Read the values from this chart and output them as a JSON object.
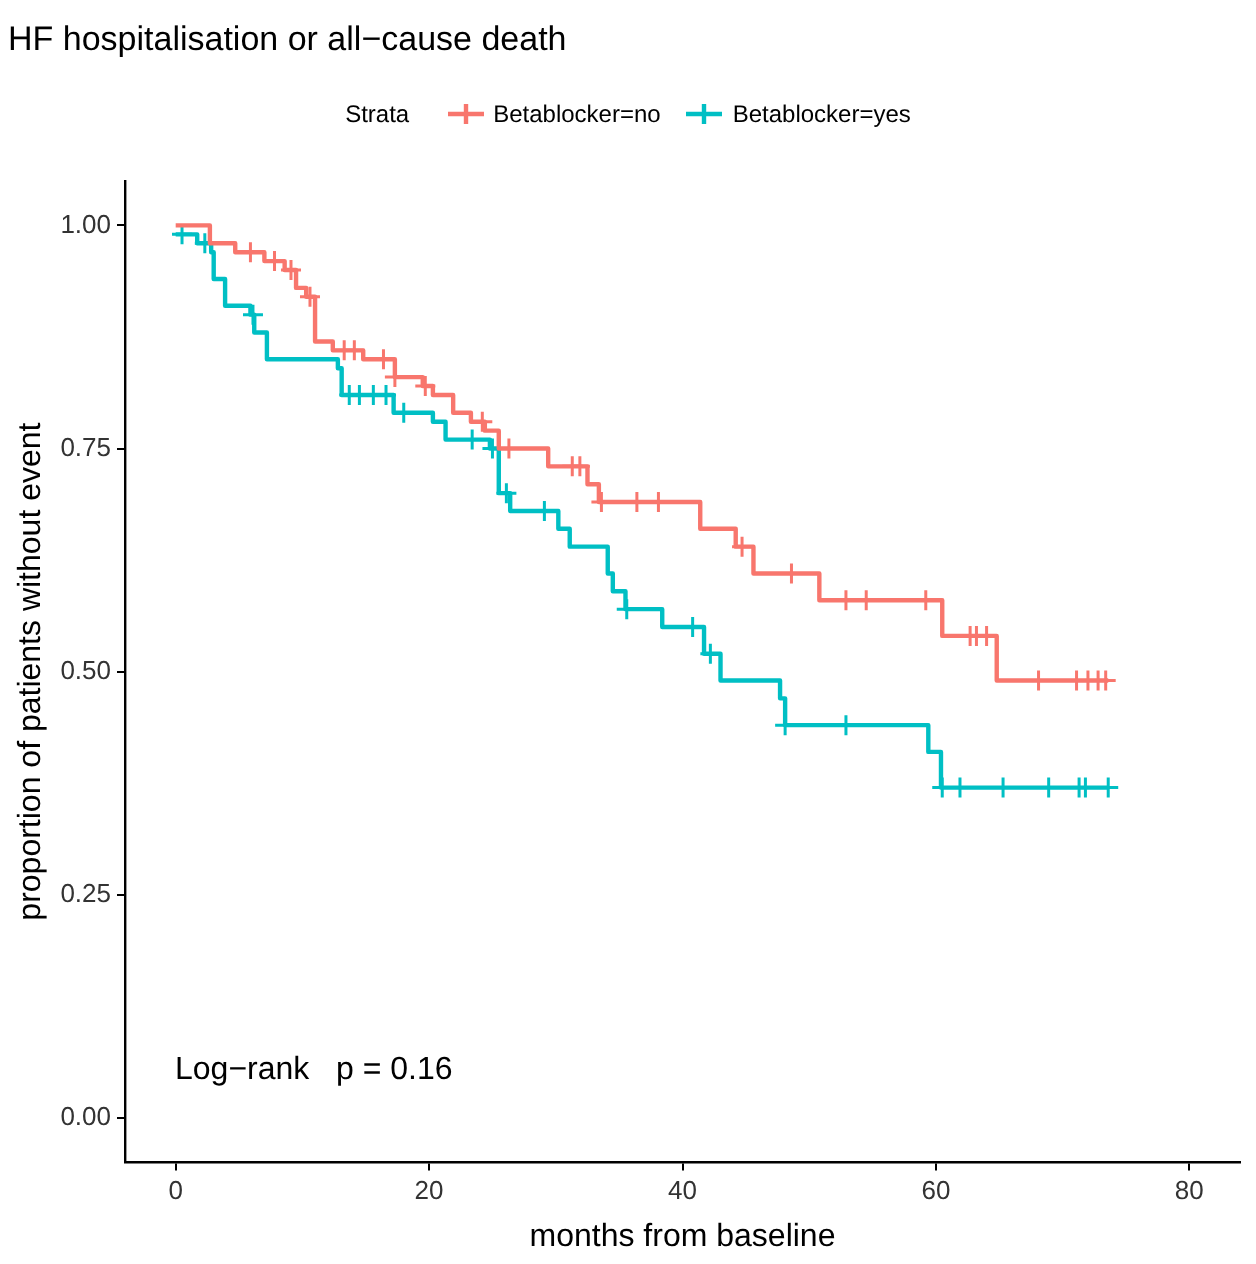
{
  "chart_data": {
    "type": "line",
    "title": "HF hospitalisation or all−cause death",
    "xlabel": "months from baseline",
    "ylabel": "proportion of patients without event",
    "legend_title": "Strata",
    "legend": "top",
    "grid": false,
    "xlim": [
      -4,
      84
    ],
    "xticks": [
      0,
      20,
      40,
      60,
      80
    ],
    "ylim": [
      -0.05,
      1.05
    ],
    "yticks": [
      {
        "value": 0,
        "label": "0.00"
      },
      {
        "value": 0.25,
        "label": "0.25"
      },
      {
        "value": 0.5,
        "label": "0.50"
      },
      {
        "value": 0.75,
        "label": "0.75"
      },
      {
        "value": 1,
        "label": "1.00"
      }
    ],
    "annotations": [
      "Log−rank   p = 0.16"
    ],
    "series": [
      {
        "type": "step",
        "name": "Betablocker=no",
        "color": "#f8766d",
        "x": [
          0,
          2.7,
          4.7,
          7.0,
          8.6,
          9.5,
          10.3,
          11,
          12.4,
          14.8,
          17.3,
          19.5,
          20.3,
          21.9,
          23.3,
          24.4,
          25.5,
          29.4,
          32.5,
          33.4,
          41.4,
          44.2,
          45.6,
          50.8,
          60.5,
          64.8,
          73.6
        ],
        "values": [
          1,
          0.98,
          0.97,
          0.96,
          0.95,
          0.93,
          0.92,
          0.87,
          0.86,
          0.85,
          0.83,
          0.82,
          0.81,
          0.79,
          0.78,
          0.77,
          0.75,
          0.73,
          0.71,
          0.69,
          0.66,
          0.64,
          0.61,
          0.58,
          0.54,
          0.49,
          0.49
        ]
      },
      {
        "type": "step",
        "name": "Betablocker=yes",
        "color": "#00bfc4",
        "x": [
          0,
          1.7,
          2.8,
          3.0,
          3.9,
          5.9,
          6.2,
          7.2,
          12.8,
          13.1,
          17.2,
          20.3,
          21.3,
          24.8,
          25.5,
          26.4,
          30.2,
          31.1,
          34.1,
          34.5,
          35.5,
          38.4,
          41.7,
          43,
          47.7,
          48.1,
          59.4,
          60.4,
          73.6
        ],
        "values": [
          0.99,
          0.98,
          0.97,
          0.94,
          0.91,
          0.9,
          0.88,
          0.85,
          0.84,
          0.81,
          0.79,
          0.78,
          0.76,
          0.75,
          0.7,
          0.68,
          0.66,
          0.64,
          0.61,
          0.59,
          0.57,
          0.55,
          0.52,
          0.49,
          0.47,
          0.44,
          0.41,
          0.37,
          0.37
        ]
      },
      {
        "type": "scatter",
        "marker": "cross",
        "color": "#f8766d",
        "x": [
          5.9,
          7.8,
          9.1,
          10.6,
          13.3,
          14.1,
          16.4,
          17.3,
          19.7,
          24.2,
          26.3,
          31.3,
          31.9,
          33.6,
          36.4,
          38.1,
          44.7,
          48.6,
          52.9,
          54.5,
          59.2,
          62.7,
          63.2,
          64,
          68.1,
          71.1,
          72,
          72.8,
          73.4
        ],
        "values": [
          0.97,
          0.96,
          0.95,
          0.92,
          0.86,
          0.86,
          0.85,
          0.83,
          0.82,
          0.78,
          0.75,
          0.73,
          0.73,
          0.69,
          0.69,
          0.69,
          0.64,
          0.61,
          0.58,
          0.58,
          0.58,
          0.54,
          0.54,
          0.54,
          0.49,
          0.49,
          0.49,
          0.49,
          0.49
        ]
      },
      {
        "type": "scatter",
        "marker": "cross",
        "color": "#00bfc4",
        "x": [
          0.5,
          2.3,
          6.1,
          13.7,
          14.5,
          15.6,
          16.6,
          18,
          23.4,
          25,
          26.1,
          29.1,
          35.6,
          40.8,
          42.2,
          48.1,
          52.9,
          60.5,
          61.9,
          65.3,
          68.9,
          71.3,
          71.8,
          73.6
        ],
        "values": [
          0.99,
          0.98,
          0.9,
          0.81,
          0.81,
          0.81,
          0.81,
          0.79,
          0.76,
          0.75,
          0.7,
          0.68,
          0.57,
          0.55,
          0.52,
          0.44,
          0.44,
          0.37,
          0.37,
          0.37,
          0.37,
          0.37,
          0.37,
          0.37
        ]
      }
    ]
  }
}
